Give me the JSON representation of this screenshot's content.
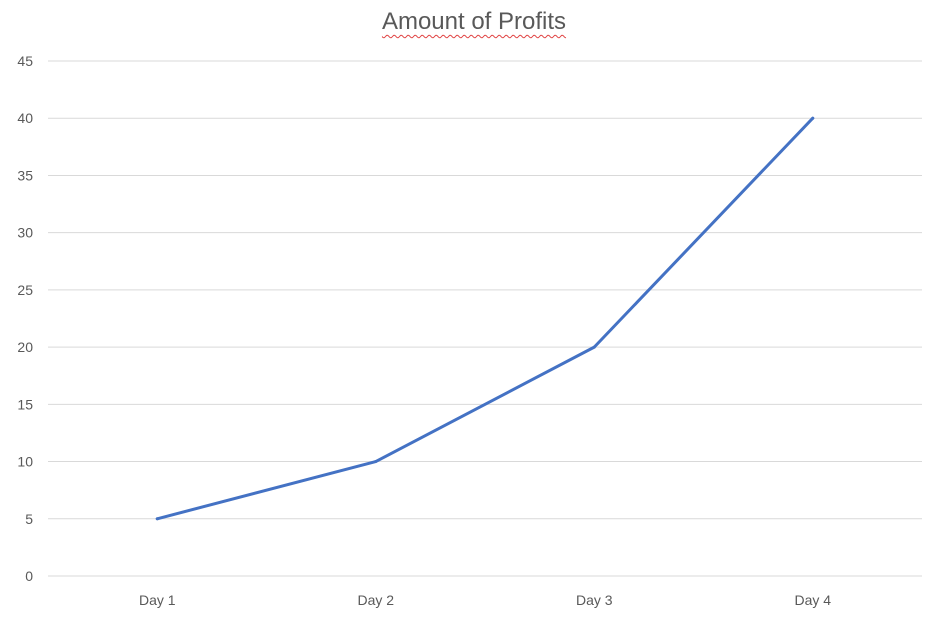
{
  "chart_data": {
    "type": "line",
    "title": "Amount of Profits",
    "xlabel": "",
    "ylabel": "",
    "categories": [
      "Day 1",
      "Day 2",
      "Day 3",
      "Day 4"
    ],
    "series": [
      {
        "values": [
          5,
          10,
          20,
          40
        ],
        "color": "#4472c4"
      }
    ],
    "ylim": [
      0,
      45
    ],
    "yticks": [
      0,
      5,
      10,
      15,
      20,
      25,
      30,
      35,
      40,
      45
    ],
    "grid": true,
    "legend": "none"
  }
}
